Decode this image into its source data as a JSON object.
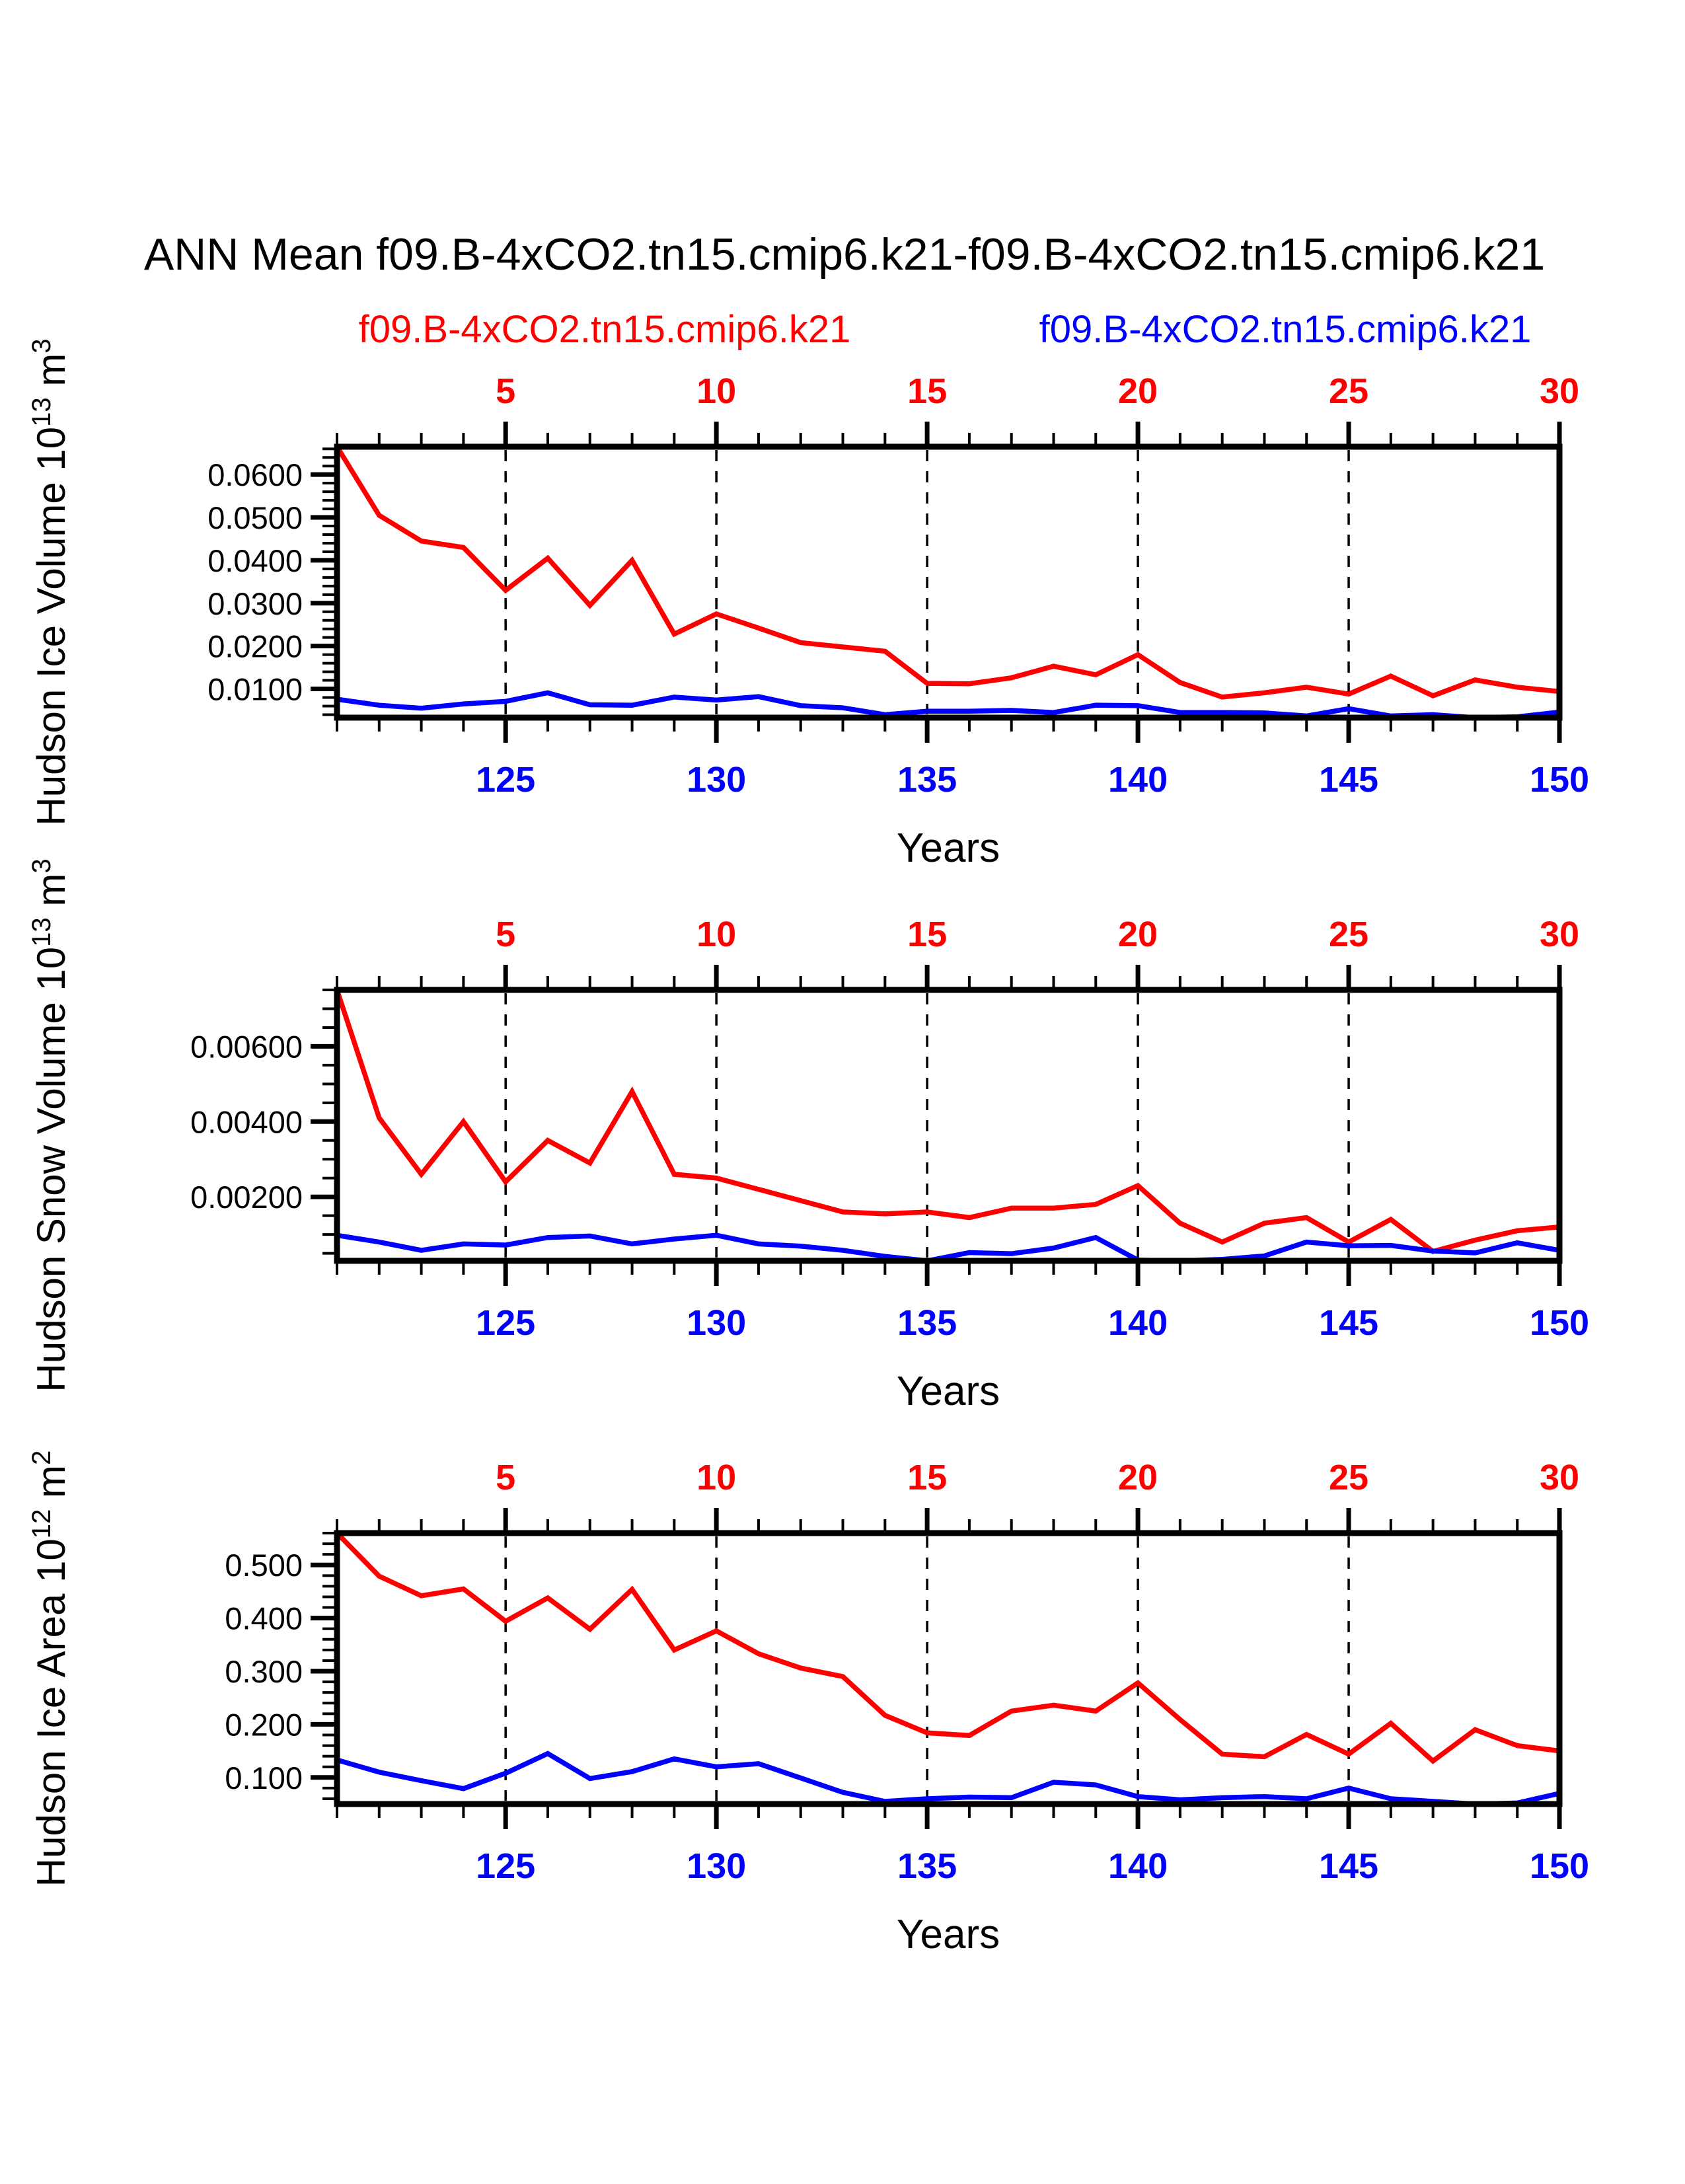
{
  "title": "ANN Mean f09.B-4xCO2.tn15.cmip6.k21-f09.B-4xCO2.tn15.cmip6.k21",
  "legend": {
    "red_label": "f09.B-4xCO2.tn15.cmip6.k21",
    "blue_label": "f09.B-4xCO2.tn15.cmip6.k21",
    "position": "top, red left / blue right"
  },
  "colors": {
    "red": "#ff0000",
    "blue": "#0000ff",
    "axis": "#000000",
    "background": "#ffffff"
  },
  "xlabel": "Years",
  "top_axis_tick_labels": [
    "5",
    "10",
    "15",
    "20",
    "25",
    "30"
  ],
  "bottom_axis_tick_labels": [
    "125",
    "130",
    "135",
    "140",
    "145",
    "150"
  ],
  "chart_data": [
    {
      "type": "line",
      "panel_name": "hudson-ice-volume",
      "y_axis_title": "Hudson Ice Volume 10^13 m^3",
      "y_axis_title_segments": [
        {
          "text": "Hudson Ice Volume 10",
          "sup": false
        },
        {
          "text": "13",
          "sup": true
        },
        {
          "text": " m",
          "sup": false
        },
        {
          "text": "3",
          "sup": true
        }
      ],
      "x_range": [
        121,
        150
      ],
      "x_years": [
        121,
        122,
        123,
        124,
        125,
        126,
        127,
        128,
        129,
        130,
        131,
        132,
        133,
        134,
        135,
        136,
        137,
        138,
        139,
        140,
        141,
        142,
        143,
        144,
        145,
        146,
        147,
        148,
        149,
        150
      ],
      "x_major_ticks": [
        125,
        130,
        135,
        140,
        145,
        150
      ],
      "grid_years": [
        125,
        130,
        135,
        140,
        145
      ],
      "grid_style": "vertical-dashed",
      "ylim": [
        0.0033,
        0.0665
      ],
      "y_major": {
        "values": [
          0.01,
          0.02,
          0.03,
          0.04,
          0.05,
          0.06
        ],
        "labels": [
          "0.0100",
          "0.0200",
          "0.0300",
          "0.0400",
          "0.0500",
          "0.0600"
        ]
      },
      "y_minor_step": 0.002,
      "series": [
        {
          "name": "f09.B-4xCO2.tn15.cmip6.k21",
          "color_key": "red",
          "values": [
            0.0665,
            0.0505,
            0.0445,
            0.043,
            0.033,
            0.0405,
            0.0295,
            0.04,
            0.0228,
            0.0275,
            0.0242,
            0.0208,
            0.0198,
            0.0188,
            0.0113,
            0.0112,
            0.0126,
            0.0153,
            0.0133,
            0.018,
            0.0115,
            0.0081,
            0.0091,
            0.0104,
            0.0088,
            0.013,
            0.0084,
            0.0121,
            0.0104,
            0.0094
          ]
        },
        {
          "name": "f09.B-4xCO2.tn15.cmip6.k21",
          "color_key": "blue",
          "values": [
            0.0076,
            0.0062,
            0.0055,
            0.0065,
            0.0071,
            0.0091,
            0.0063,
            0.0062,
            0.0081,
            0.0074,
            0.0082,
            0.0061,
            0.0056,
            0.004,
            0.0048,
            0.0048,
            0.005,
            0.0045,
            0.0062,
            0.0061,
            0.0045,
            0.0045,
            0.0044,
            0.0037,
            0.0054,
            0.0037,
            0.004,
            0.0033,
            0.0035,
            0.0046
          ]
        }
      ]
    },
    {
      "type": "line",
      "panel_name": "hudson-snow-volume",
      "y_axis_title": "Hudson Snow Volume 10^13 m^3",
      "y_axis_title_segments": [
        {
          "text": "Hudson Snow Volume 10",
          "sup": false
        },
        {
          "text": "13",
          "sup": true
        },
        {
          "text": " m",
          "sup": false
        },
        {
          "text": "3",
          "sup": true
        }
      ],
      "x_range": [
        121,
        150
      ],
      "x_years": [
        121,
        122,
        123,
        124,
        125,
        126,
        127,
        128,
        129,
        130,
        131,
        132,
        133,
        134,
        135,
        136,
        137,
        138,
        139,
        140,
        141,
        142,
        143,
        144,
        145,
        146,
        147,
        148,
        149,
        150
      ],
      "x_major_ticks": [
        125,
        130,
        135,
        140,
        145,
        150
      ],
      "grid_years": [
        125,
        130,
        135,
        140,
        145
      ],
      "grid_style": "vertical-dashed",
      "ylim": [
        0.0003,
        0.0075
      ],
      "y_major": {
        "values": [
          0.002,
          0.004,
          0.006
        ],
        "labels": [
          "0.00200",
          "0.00400",
          "0.00600"
        ]
      },
      "y_minor_step": 0.0005,
      "series": [
        {
          "name": "f09.B-4xCO2.tn15.cmip6.k21",
          "color_key": "red",
          "values": [
            0.0075,
            0.0041,
            0.0026,
            0.004,
            0.0024,
            0.0035,
            0.0029,
            0.0048,
            0.0026,
            0.0025,
            0.0022,
            0.0019,
            0.0016,
            0.00155,
            0.0016,
            0.00145,
            0.0017,
            0.0017,
            0.0018,
            0.0023,
            0.0013,
            0.0008,
            0.0013,
            0.00145,
            0.0008,
            0.0014,
            0.00055,
            0.00085,
            0.0011,
            0.0012
          ]
        },
        {
          "name": "f09.B-4xCO2.tn15.cmip6.k21",
          "color_key": "blue",
          "values": [
            0.00098,
            0.0008,
            0.00058,
            0.00075,
            0.00072,
            0.00092,
            0.00096,
            0.00075,
            0.00088,
            0.00098,
            0.00075,
            0.00069,
            0.00058,
            0.00042,
            0.0003,
            0.00052,
            0.00049,
            0.00064,
            0.00092,
            0.00032,
            0.0003,
            0.00034,
            0.00043,
            0.0008,
            0.0007,
            0.00071,
            0.00056,
            0.00051,
            0.00078,
            0.00058
          ]
        }
      ]
    },
    {
      "type": "line",
      "panel_name": "hudson-ice-area",
      "y_axis_title": "Hudson Ice Area 10^12 m^2",
      "y_axis_title_segments": [
        {
          "text": "Hudson Ice Area 10",
          "sup": false
        },
        {
          "text": "12",
          "sup": true
        },
        {
          "text": " m",
          "sup": false
        },
        {
          "text": "2",
          "sup": true
        }
      ],
      "x_range": [
        121,
        150
      ],
      "x_years": [
        121,
        122,
        123,
        124,
        125,
        126,
        127,
        128,
        129,
        130,
        131,
        132,
        133,
        134,
        135,
        136,
        137,
        138,
        139,
        140,
        141,
        142,
        143,
        144,
        145,
        146,
        147,
        148,
        149,
        150
      ],
      "x_major_ticks": [
        125,
        130,
        135,
        140,
        145,
        150
      ],
      "grid_years": [
        125,
        130,
        135,
        140,
        145
      ],
      "grid_style": "vertical-dashed",
      "ylim": [
        0.05,
        0.56
      ],
      "y_major": {
        "values": [
          0.1,
          0.2,
          0.3,
          0.4,
          0.5
        ],
        "labels": [
          "0.100",
          "0.200",
          "0.300",
          "0.400",
          "0.500"
        ]
      },
      "y_minor_step": 0.02,
      "series": [
        {
          "name": "f09.B-4xCO2.tn15.cmip6.k21",
          "color_key": "red",
          "values": [
            0.56,
            0.479,
            0.442,
            0.455,
            0.394,
            0.438,
            0.379,
            0.454,
            0.34,
            0.376,
            0.333,
            0.306,
            0.29,
            0.217,
            0.184,
            0.179,
            0.225,
            0.236,
            0.225,
            0.278,
            0.209,
            0.144,
            0.139,
            0.181,
            0.144,
            0.202,
            0.131,
            0.19,
            0.16,
            0.15
          ]
        },
        {
          "name": "f09.B-4xCO2.tn15.cmip6.k21",
          "color_key": "blue",
          "values": [
            0.133,
            0.11,
            0.094,
            0.079,
            0.108,
            0.145,
            0.098,
            0.111,
            0.135,
            0.12,
            0.126,
            0.099,
            0.072,
            0.055,
            0.06,
            0.063,
            0.062,
            0.091,
            0.086,
            0.064,
            0.058,
            0.062,
            0.064,
            0.06,
            0.08,
            0.06,
            0.055,
            0.05,
            0.052,
            0.07
          ]
        }
      ]
    }
  ]
}
